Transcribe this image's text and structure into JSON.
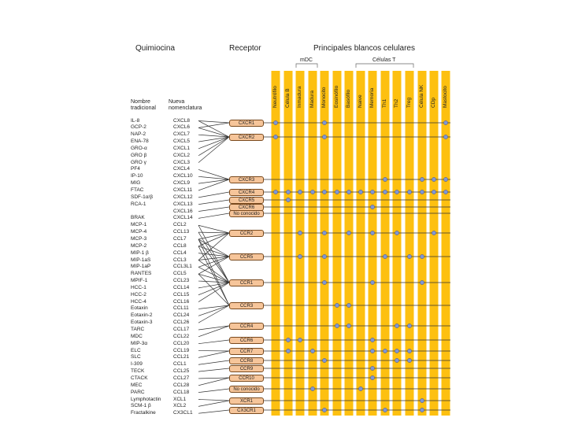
{
  "headers": {
    "quimiocina": "Quimiocina",
    "receptor": "Receptor",
    "blancos": "Principales blancos celulares",
    "mdc": "mDC",
    "celulas_t": "Células T",
    "nombre_tradicional": "Nombre\ntradicional",
    "nueva_nomenclatura": "Nueva\nnomenclatura"
  },
  "cell_columns": [
    "Neutrófilo",
    "Célula B",
    "Inmadura",
    "Madura",
    "Monocito",
    "Eosinófilo",
    "Basófilo",
    "Naive",
    "Memoria",
    "Th1",
    "Th2",
    "Treg",
    "Célula NK",
    "CDp",
    "Mastocito"
  ],
  "chemokines": [
    {
      "trad": "IL-8",
      "new": "CXCL8"
    },
    {
      "trad": "GCP-2",
      "new": "CXCL6"
    },
    {
      "trad": "NAP-2",
      "new": "CXCL7"
    },
    {
      "trad": "ENA-78",
      "new": "CXCL5"
    },
    {
      "trad": "GRO-α",
      "new": "CXCL1"
    },
    {
      "trad": "GRO β",
      "new": "CXCL2"
    },
    {
      "trad": "GRO γ",
      "new": "CXCL3"
    },
    {
      "trad": "PF4",
      "new": "CXCL4"
    },
    {
      "trad": "IP-10",
      "new": "CXCL10"
    },
    {
      "trad": "MIG",
      "new": "CXCL9"
    },
    {
      "trad": "FTAC",
      "new": "CXCL11"
    },
    {
      "trad": "SDF-1α/β",
      "new": "CXCL12"
    },
    {
      "trad": "RCA-1",
      "new": "CXCL13"
    },
    {
      "trad": "",
      "new": "CXCL16"
    },
    {
      "trad": "BRAK",
      "new": "CXCL14"
    },
    {
      "trad": "MCP-1",
      "new": "CCL2"
    },
    {
      "trad": "MCP-4",
      "new": "CCL13"
    },
    {
      "trad": "MCP-3",
      "new": "CCL7"
    },
    {
      "trad": "MCP-2",
      "new": "CCL8"
    },
    {
      "trad": "MIP-1 β",
      "new": "CCL4"
    },
    {
      "trad": "MIP-1aS",
      "new": "CCL3"
    },
    {
      "trad": "MIP-1aP",
      "new": "CCL3L1"
    },
    {
      "trad": "RANTES",
      "new": "CCL5"
    },
    {
      "trad": "MPIF-1",
      "new": "CCL23"
    },
    {
      "trad": "HCC-1",
      "new": "CCL14"
    },
    {
      "trad": "HCC-2",
      "new": "CCL15"
    },
    {
      "trad": "HCC-4",
      "new": "CCL16"
    },
    {
      "trad": "Eotaxin",
      "new": "CCL11"
    },
    {
      "trad": "Eotaxin-2",
      "new": "CCL24"
    },
    {
      "trad": "Eotaxin-3",
      "new": "CCL26"
    },
    {
      "trad": "TARC",
      "new": "CCL17"
    },
    {
      "trad": "MDC",
      "new": "CCL22"
    },
    {
      "trad": "MIP-3α",
      "new": "CCL20"
    },
    {
      "trad": "ELC",
      "new": "CCL19"
    },
    {
      "trad": "SLC",
      "new": "CCL21"
    },
    {
      "trad": "I-309",
      "new": "CCL1"
    },
    {
      "trad": "TECK",
      "new": "CCL25"
    },
    {
      "trad": "CTACK",
      "new": "CCL27"
    },
    {
      "trad": "MEC",
      "new": "CCL28"
    },
    {
      "trad": "PARC",
      "new": "CCL18"
    },
    {
      "trad": "Lymphotactin",
      "new": "XCL1"
    },
    {
      "trad": "SCM-1 β",
      "new": "XCL2"
    },
    {
      "trad": "Fractalkine",
      "new": "CX3CL1"
    }
  ],
  "receptors": [
    {
      "name": "CXCR1",
      "ligands": [
        0,
        1
      ],
      "targets": [
        0,
        4,
        14
      ]
    },
    {
      "name": "CXCR2",
      "ligands": [
        0,
        1,
        2,
        3,
        4,
        5,
        6
      ],
      "targets": [
        0,
        4,
        14
      ]
    },
    {
      "name": "CXCR3",
      "ligands": [
        7,
        8,
        9,
        10
      ],
      "targets": [
        9,
        12,
        13,
        14
      ]
    },
    {
      "name": "CXCR4",
      "ligands": [
        11
      ],
      "targets": [
        0,
        1,
        2,
        3,
        4,
        5,
        6,
        7,
        8,
        9,
        10,
        11,
        12,
        13,
        14
      ]
    },
    {
      "name": "CXCR5",
      "ligands": [
        12
      ],
      "targets": [
        1
      ]
    },
    {
      "name": "CXCR6",
      "ligands": [
        13
      ],
      "targets": [
        8
      ]
    },
    {
      "name": "No conocido",
      "ligands": [
        14
      ],
      "targets": []
    },
    {
      "name": "CCR2",
      "ligands": [
        15,
        16,
        17,
        18,
        20
      ],
      "targets": [
        2,
        4,
        6,
        8,
        10,
        13
      ]
    },
    {
      "name": "CCR5",
      "ligands": [
        17,
        18,
        19,
        20,
        21,
        22
      ],
      "targets": [
        2,
        4,
        9,
        11,
        12
      ]
    },
    {
      "name": "CCR1",
      "ligands": [
        15,
        16,
        17,
        20,
        21,
        22,
        23,
        24,
        25,
        26
      ],
      "targets": [
        4,
        8,
        12
      ]
    },
    {
      "name": "CCR3",
      "ligands": [
        17,
        18,
        22,
        27,
        28,
        29
      ],
      "targets": [
        5,
        6
      ]
    },
    {
      "name": "CCR4",
      "ligands": [
        30,
        31
      ],
      "targets": [
        5,
        6,
        10,
        11
      ]
    },
    {
      "name": "CCR6",
      "ligands": [
        32
      ],
      "targets": [
        1,
        2,
        8
      ]
    },
    {
      "name": "CCR7",
      "ligands": [
        33,
        34
      ],
      "targets": [
        1,
        3,
        8,
        9,
        10,
        11
      ]
    },
    {
      "name": "CCR8",
      "ligands": [
        35
      ],
      "targets": [
        4,
        10,
        11
      ]
    },
    {
      "name": "CCR9",
      "ligands": [
        36
      ],
      "targets": [
        8
      ]
    },
    {
      "name": "CCR10",
      "ligands": [
        37,
        38
      ],
      "targets": [
        8
      ]
    },
    {
      "name": "No conocido",
      "ligands": [
        39
      ],
      "targets": [
        3,
        7
      ]
    },
    {
      "name": "XCR1",
      "ligands": [
        40,
        41
      ],
      "targets": [
        12
      ]
    },
    {
      "name": "CX3CR1",
      "ligands": [
        42
      ],
      "targets": [
        4,
        9,
        12
      ]
    }
  ],
  "colors": {
    "column": "#fdc010",
    "receptor_fill": "#f6c59a",
    "receptor_border": "#7a4a1e",
    "dot": "#7f96d6",
    "line": "#333333"
  }
}
